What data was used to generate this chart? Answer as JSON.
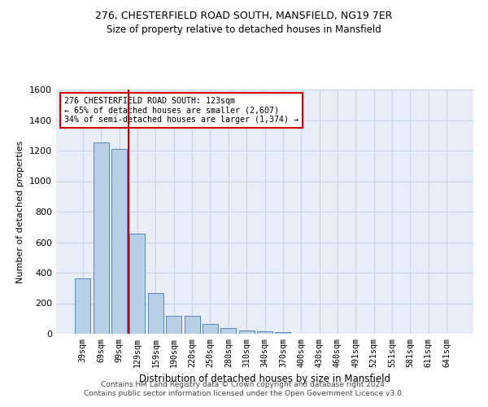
{
  "title": "276, CHESTERFIELD ROAD SOUTH, MANSFIELD, NG19 7ER",
  "subtitle": "Size of property relative to detached houses in Mansfield",
  "xlabel": "Distribution of detached houses by size in Mansfield",
  "ylabel": "Number of detached properties",
  "footer_line1": "Contains HM Land Registry data © Crown copyright and database right 2024.",
  "footer_line2": "Contains public sector information licensed under the Open Government Licence v3.0.",
  "categories": [
    "39sqm",
    "69sqm",
    "99sqm",
    "129sqm",
    "159sqm",
    "190sqm",
    "220sqm",
    "250sqm",
    "280sqm",
    "310sqm",
    "340sqm",
    "370sqm",
    "400sqm",
    "430sqm",
    "460sqm",
    "491sqm",
    "521sqm",
    "551sqm",
    "581sqm",
    "611sqm",
    "641sqm"
  ],
  "values": [
    365,
    1255,
    1210,
    655,
    265,
    115,
    115,
    65,
    38,
    20,
    18,
    12,
    0,
    0,
    0,
    0,
    0,
    0,
    0,
    0,
    0
  ],
  "bar_color": "#b8cfe8",
  "bar_edge_color": "#5588bb",
  "grid_color": "#c8d4e8",
  "bg_color": "#e8edf8",
  "vline_x_index": 3,
  "vline_color": "#cc0000",
  "annotation_text": "276 CHESTERFIELD ROAD SOUTH: 123sqm\n← 65% of detached houses are smaller (2,607)\n34% of semi-detached houses are larger (1,374) →",
  "annotation_box_color": "#cc0000",
  "ylim": [
    0,
    1600
  ],
  "yticks": [
    0,
    200,
    400,
    600,
    800,
    1000,
    1200,
    1400,
    1600
  ],
  "title_fontsize": 9,
  "subtitle_fontsize": 8.5
}
